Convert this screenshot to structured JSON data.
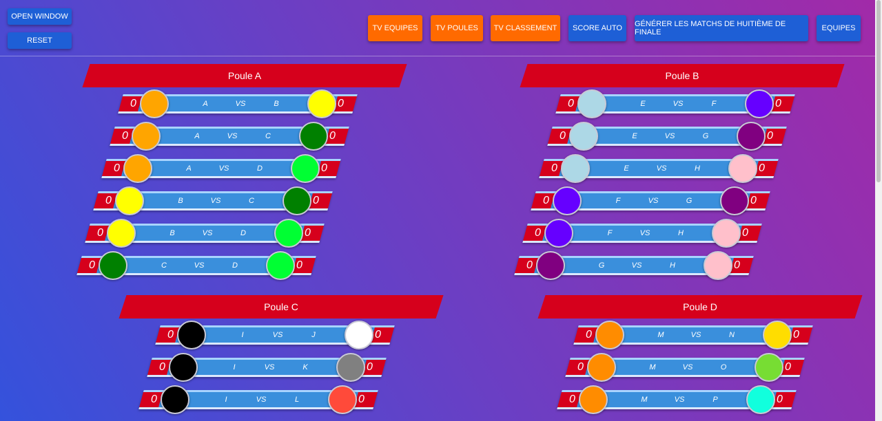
{
  "header": {
    "left_buttons": [
      "OPEN WINDOW",
      "RESET"
    ],
    "right_buttons": [
      {
        "label": "TV EQUIPES",
        "color": "#ff6a00"
      },
      {
        "label": "TV POULES",
        "color": "#ff6a00"
      },
      {
        "label": "TV CLASSEMENT",
        "color": "#ff6a00"
      },
      {
        "label": "SCORE AUTO",
        "color": "#1e5fd6"
      },
      {
        "label": "GÉNÉRER LES MATCHS DE HUITIÈME DE FINALE",
        "color": "#1e5fd6"
      },
      {
        "label": "EQUIPES",
        "color": "#1e5fd6"
      }
    ]
  },
  "poules": [
    {
      "title": "Poule A",
      "matches": [
        {
          "score1": 0,
          "team1": "A",
          "vs": "VS",
          "team2": "B",
          "score2": 0,
          "color1": "#ffa500",
          "color2": "#ffff00"
        },
        {
          "score1": 0,
          "team1": "A",
          "vs": "VS",
          "team2": "C",
          "score2": 0,
          "color1": "#ffa500",
          "color2": "#008000"
        },
        {
          "score1": 0,
          "team1": "A",
          "vs": "VS",
          "team2": "D",
          "score2": 0,
          "color1": "#ffa500",
          "color2": "#00ff33"
        },
        {
          "score1": 0,
          "team1": "B",
          "vs": "VS",
          "team2": "C",
          "score2": 0,
          "color1": "#ffff00",
          "color2": "#008000"
        },
        {
          "score1": 0,
          "team1": "B",
          "vs": "VS",
          "team2": "D",
          "score2": 0,
          "color1": "#ffff00",
          "color2": "#00ff33"
        },
        {
          "score1": 0,
          "team1": "C",
          "vs": "VS",
          "team2": "D",
          "score2": 0,
          "color1": "#008000",
          "color2": "#00ff33"
        }
      ]
    },
    {
      "title": "Poule B",
      "matches": [
        {
          "score1": 0,
          "team1": "E",
          "vs": "VS",
          "team2": "F",
          "score2": 0,
          "color1": "#add8e6",
          "color2": "#6600ff"
        },
        {
          "score1": 0,
          "team1": "E",
          "vs": "VS",
          "team2": "G",
          "score2": 0,
          "color1": "#add8e6",
          "color2": "#800080"
        },
        {
          "score1": 0,
          "team1": "E",
          "vs": "VS",
          "team2": "H",
          "score2": 0,
          "color1": "#add8e6",
          "color2": "#ffc0cb"
        },
        {
          "score1": 0,
          "team1": "F",
          "vs": "VS",
          "team2": "G",
          "score2": 0,
          "color1": "#6600ff",
          "color2": "#800080"
        },
        {
          "score1": 0,
          "team1": "F",
          "vs": "VS",
          "team2": "H",
          "score2": 0,
          "color1": "#6600ff",
          "color2": "#ffc0cb"
        },
        {
          "score1": 0,
          "team1": "G",
          "vs": "VS",
          "team2": "H",
          "score2": 0,
          "color1": "#800080",
          "color2": "#ffc0cb"
        }
      ]
    },
    {
      "title": "Poule C",
      "matches": [
        {
          "score1": 0,
          "team1": "I",
          "vs": "VS",
          "team2": "J",
          "score2": 0,
          "color1": "#000000",
          "color2": "#ffffff"
        },
        {
          "score1": 0,
          "team1": "I",
          "vs": "VS",
          "team2": "K",
          "score2": 0,
          "color1": "#000000",
          "color2": "#808080"
        },
        {
          "score1": 0,
          "team1": "I",
          "vs": "VS",
          "team2": "L",
          "score2": 0,
          "color1": "#000000",
          "color2": "#ff4a3a"
        }
      ]
    },
    {
      "title": "Poule D",
      "matches": [
        {
          "score1": 0,
          "team1": "M",
          "vs": "VS",
          "team2": "N",
          "score2": 0,
          "color1": "#ff8c00",
          "color2": "#ffdd00"
        },
        {
          "score1": 0,
          "team1": "M",
          "vs": "VS",
          "team2": "O",
          "score2": 0,
          "color1": "#ff8c00",
          "color2": "#77dd33"
        },
        {
          "score1": 0,
          "team1": "M",
          "vs": "VS",
          "team2": "P",
          "score2": 0,
          "color1": "#ff8c00",
          "color2": "#11ffdd"
        }
      ]
    }
  ]
}
